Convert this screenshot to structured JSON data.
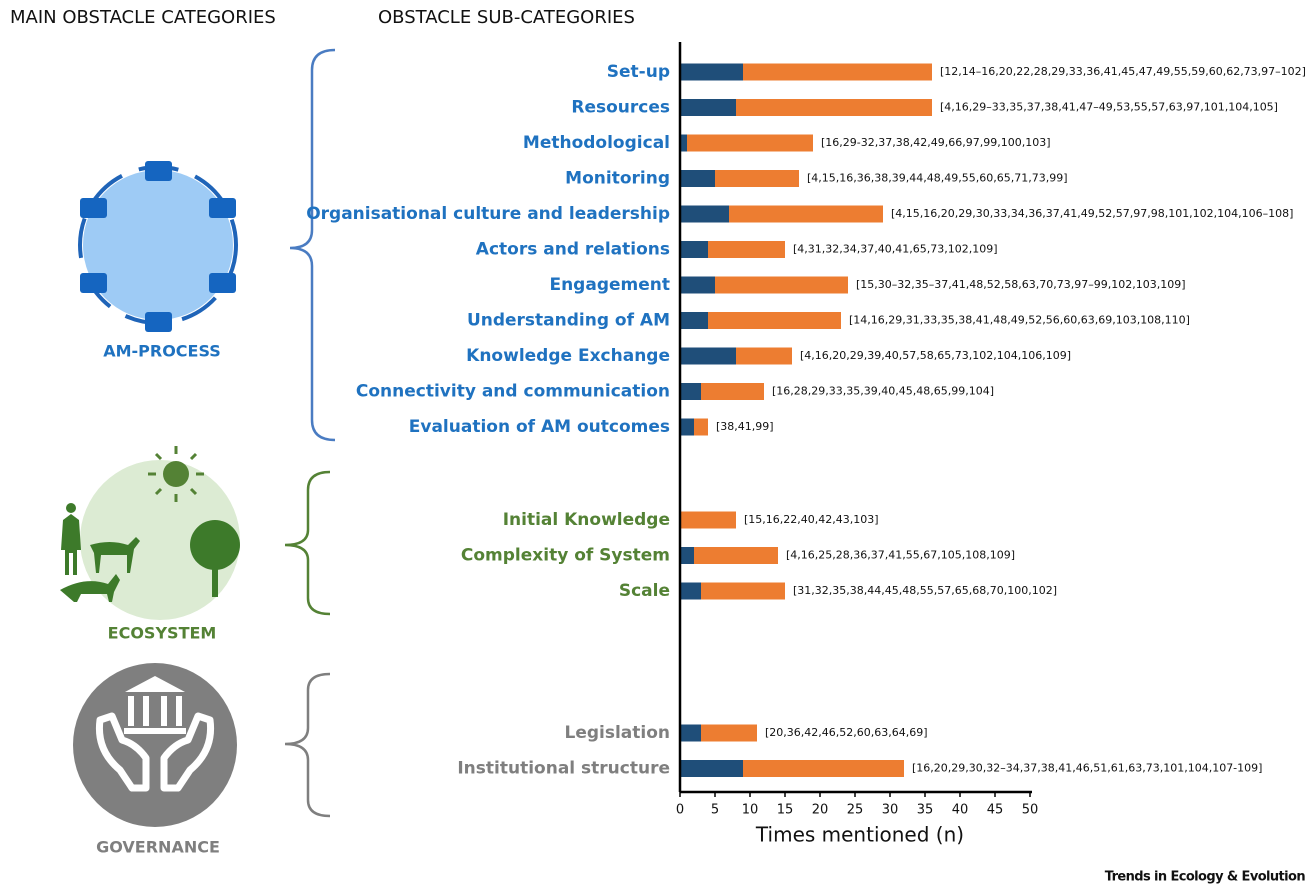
{
  "chart_data": {
    "type": "bar",
    "orientation": "horizontal",
    "stacked": true,
    "header_left": "MAIN OBSTACLE CATEGORIES",
    "header_right": "OBSTACLE SUB-CATEGORIES",
    "xlabel": "Times mentioned (n)",
    "xlim": [
      0,
      50
    ],
    "xticks": [
      0,
      5,
      10,
      15,
      20,
      25,
      30,
      35,
      40,
      45,
      50
    ],
    "groups": [
      {
        "name": "AM-PROCESS",
        "color": "#1f72c0",
        "categories": [
          "Set-up",
          "Resources",
          "Methodological",
          "Monitoring",
          "Organisational culture and leadership",
          "Actors and relations",
          "Engagement",
          "Understanding of AM",
          "Knowledge Exchange",
          "Connectivity and communication",
          "Evaluation of AM outcomes"
        ],
        "references": [
          "[12,14–16,20,22,28,29,33,36,41,45,47,49,55,59,60,62,73,97–102]",
          "[4,16,29–33,35,37,38,41,47–49,53,55,57,63,97,101,104,105]",
          "[16,29-32,37,38,42,49,66,97,99,100,103]",
          "[4,15,16,36,38,39,44,48,49,55,60,65,71,73,99]",
          "[4,15,16,20,29,30,33,34,36,37,41,49,52,57,97,98,101,102,104,106–108]",
          "[4,31,32,34,37,40,41,65,73,102,109]",
          "[15,30–32,35–37,41,48,52,58,63,70,73,97–99,102,103,109]",
          "[14,16,29,31,33,35,38,41,48,49,52,56,60,63,69,103,108,110]",
          "[4,16,20,29,39,40,57,58,65,73,102,104,106,109]",
          "[16,28,29,33,35,39,40,45,48,65,99,104]",
          "[38,41,99]"
        ],
        "series": [
          {
            "color": "#1f4e79",
            "values": [
              9,
              8,
              1,
              5,
              7,
              4,
              5,
              4,
              8,
              3,
              2
            ]
          },
          {
            "color": "#ed7d31",
            "values": [
              27,
              28,
              18,
              12,
              22,
              11,
              19,
              19,
              8,
              9,
              2
            ]
          }
        ]
      },
      {
        "name": "ECOSYSTEM",
        "color": "#548235",
        "categories": [
          "Initial Knowledge",
          "Complexity of System",
          "Scale"
        ],
        "references": [
          "[15,16,22,40,42,43,103]",
          "[4,16,25,28,36,37,41,55,67,105,108,109]",
          "[31,32,35,38,44,45,48,55,57,65,68,70,100,102]"
        ],
        "series": [
          {
            "color": "#1f4e79",
            "values": [
              0,
              2,
              3
            ]
          },
          {
            "color": "#ed7d31",
            "values": [
              8,
              12,
              12
            ]
          }
        ]
      },
      {
        "name": "GOVERNANCE",
        "color": "#7f7f7f",
        "categories": [
          "Legislation",
          "Institutional structure"
        ],
        "references": [
          "[20,36,42,46,52,60,63,64,69]",
          "[16,20,29,30,32–34,37,38,41,46,51,61,63,73,101,104,107-109]"
        ],
        "series": [
          {
            "color": "#1f4e79",
            "values": [
              3,
              9
            ]
          },
          {
            "color": "#ed7d31",
            "values": [
              8,
              23
            ]
          }
        ]
      }
    ],
    "footer": "Trends in Ecology & Evolution"
  }
}
